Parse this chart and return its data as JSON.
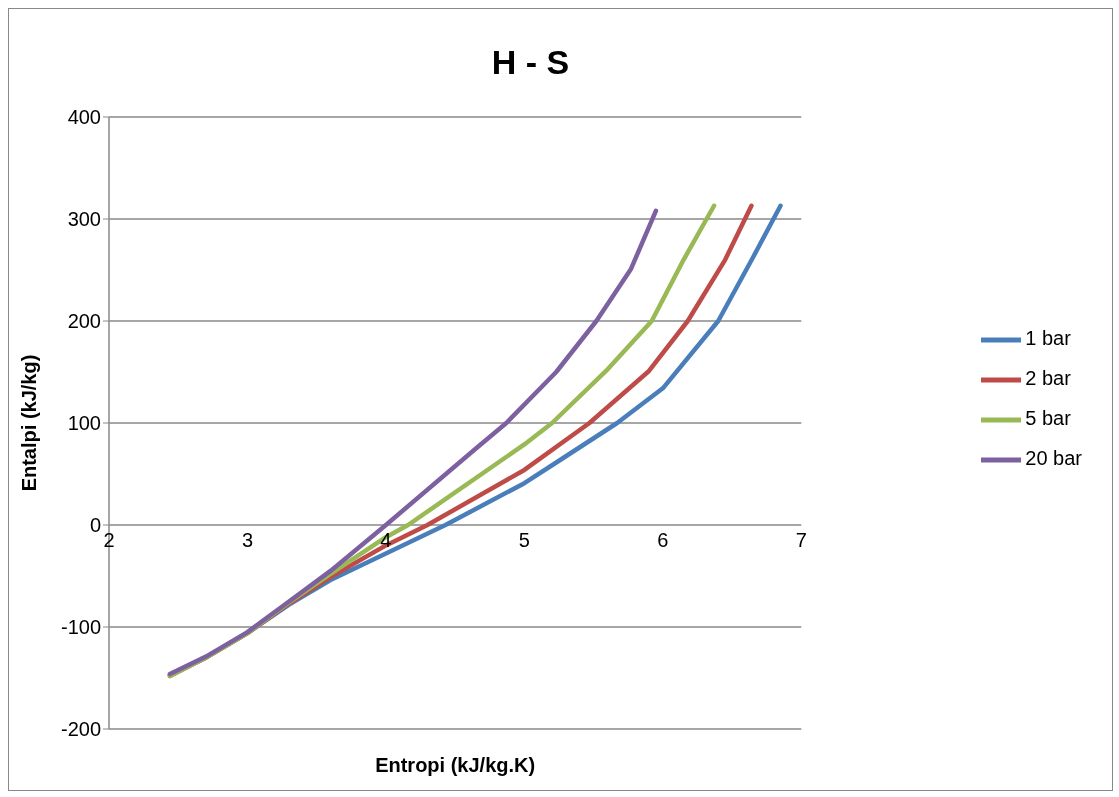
{
  "chart_data": {
    "type": "line",
    "title": "H - S",
    "xlabel": "Entropi (kJ/kg.K)",
    "ylabel": "Entalpi (kJ/kg)",
    "xlim": [
      2,
      7
    ],
    "xticks": [
      2,
      3,
      4,
      5,
      6,
      7
    ],
    "ylim": [
      -200,
      400
    ],
    "yticks": [
      -200,
      -100,
      0,
      100,
      200,
      300,
      400
    ],
    "grid": "y",
    "legend": "right",
    "marker": "none",
    "line_style": "solid",
    "series": [
      {
        "name": "1 bar",
        "color": "#4a7ebb",
        "x": [
          2.44,
          2.7,
          3.0,
          3.3,
          3.6,
          4.0,
          4.43,
          5.0,
          5.25,
          5.67,
          6.0,
          6.4,
          6.65,
          6.85
        ],
        "values": [
          -147,
          -130,
          -106,
          -78,
          -54,
          -28,
          0,
          41,
          63,
          100,
          134,
          200,
          262,
          313
        ]
      },
      {
        "name": "2 bar",
        "color": "#be4b48",
        "x": [
          2.44,
          2.7,
          3.0,
          3.3,
          3.6,
          4.0,
          4.3,
          5.0,
          5.47,
          5.9,
          6.18,
          6.45,
          6.64
        ],
        "values": [
          -148,
          -130,
          -106,
          -77,
          -51,
          -20,
          0,
          54,
          100,
          151,
          200,
          260,
          313
        ]
      },
      {
        "name": "5 bar",
        "color": "#98b954",
        "x": [
          2.44,
          2.7,
          3.0,
          3.3,
          3.6,
          4.0,
          4.16,
          5.0,
          5.2,
          5.59,
          5.92,
          6.15,
          6.37
        ],
        "values": [
          -148,
          -130,
          -106,
          -76,
          -48,
          -12,
          0,
          79,
          100,
          151,
          200,
          260,
          313
        ]
      },
      {
        "name": "20 bar",
        "color": "#7d60a0",
        "x": [
          2.44,
          2.7,
          3.0,
          3.3,
          3.6,
          4.0,
          4.65,
          4.87,
          5.23,
          5.52,
          5.77,
          5.95
        ],
        "values": [
          -146,
          -129,
          -105,
          -75,
          -45,
          0,
          75,
          100,
          150,
          200,
          251,
          308
        ]
      }
    ]
  }
}
